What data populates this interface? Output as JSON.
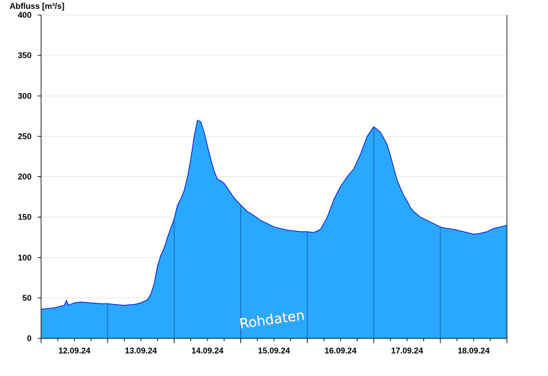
{
  "chart_data": {
    "type": "area",
    "ylabel": "Abfluss [m³/s]",
    "ylim": [
      0,
      400
    ],
    "yticks": [
      0,
      50,
      100,
      150,
      200,
      250,
      300,
      350,
      400
    ],
    "ytick_labels": [
      "0",
      "50",
      "100",
      "150",
      "200",
      "250",
      "300",
      "350",
      "400"
    ],
    "xlim": [
      0,
      7
    ],
    "day_labels": [
      "12.09.24",
      "13.09.24",
      "14.09.24",
      "15.09.24",
      "16.09.24",
      "17.09.24",
      "18.09.24"
    ],
    "grid": true,
    "fill_color": "#2aa8ff",
    "line_color": "#0000cc",
    "watermark": "Rohdaten",
    "series": [
      {
        "x": [
          0,
          0.2,
          0.35,
          0.38,
          0.41,
          0.5,
          0.6,
          0.75,
          0.9,
          1.0,
          1.1,
          1.25,
          1.4,
          1.5,
          1.6,
          1.65,
          1.7,
          1.75,
          1.8,
          1.85,
          1.9,
          1.95,
          2.0,
          2.05,
          2.1,
          2.15,
          2.2,
          2.25,
          2.3,
          2.35,
          2.4,
          2.45,
          2.5,
          2.55,
          2.6,
          2.65,
          2.7,
          2.75,
          2.8,
          2.9,
          3.0,
          3.1,
          3.2,
          3.3,
          3.4,
          3.5,
          3.6,
          3.7,
          3.8,
          3.9,
          4.0,
          4.1,
          4.2,
          4.3,
          4.4,
          4.5,
          4.6,
          4.7,
          4.8,
          4.9,
          5.0,
          5.1,
          5.2,
          5.25,
          5.3,
          5.35,
          5.4,
          5.45,
          5.5,
          5.55,
          5.6,
          5.7,
          5.8,
          5.9,
          6.0,
          6.1,
          6.2,
          6.3,
          6.4,
          6.5,
          6.6,
          6.7,
          6.8,
          6.9,
          7.0
        ],
        "values": [
          36,
          38,
          41,
          47,
          41,
          44,
          45,
          44,
          43,
          43,
          42,
          41,
          42,
          44,
          48,
          55,
          68,
          90,
          103,
          112,
          125,
          137,
          148,
          165,
          173,
          183,
          200,
          222,
          250,
          270,
          268,
          255,
          238,
          222,
          207,
          197,
          195,
          192,
          186,
          174,
          165,
          157,
          152,
          146,
          142,
          138,
          136,
          134,
          133,
          132,
          132,
          131,
          135,
          150,
          172,
          188,
          200,
          210,
          228,
          250,
          262,
          255,
          240,
          226,
          211,
          196,
          186,
          177,
          170,
          162,
          157,
          150,
          146,
          142,
          138,
          136,
          135,
          133,
          131,
          129,
          130,
          132,
          136,
          138,
          140
        ]
      }
    ]
  }
}
